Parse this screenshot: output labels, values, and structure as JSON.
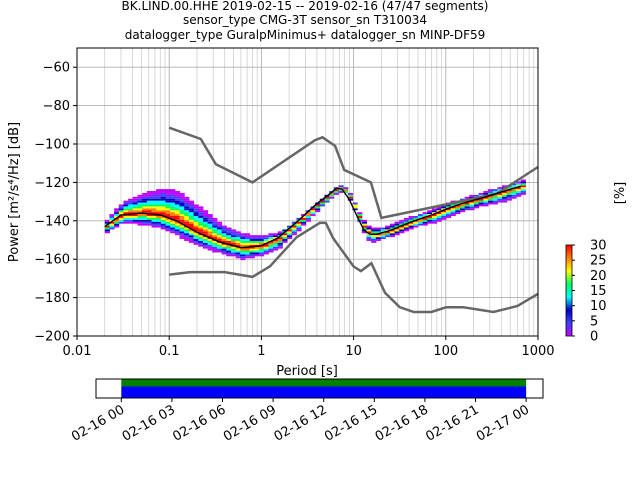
{
  "chart_data": {
    "type": "heatmap",
    "title_lines": [
      "BK.LIND.00.HHE   2019-02-15 -- 2019-02-16  (47/47 segments)",
      "sensor_type CMG-3T sensor_sn T310034",
      "datalogger_type GuralpMinimus+ datalogger_sn MINP-DF59"
    ],
    "xlabel": "Period [s]",
    "ylabel": "Power [m²/s⁴/Hz] [dB]",
    "xscale": "log",
    "xlim": [
      0.01,
      1000
    ],
    "ylim": [
      -200,
      -50
    ],
    "grid": true,
    "x_ticks": [
      {
        "value": 0.01,
        "label": "0.01"
      },
      {
        "value": 0.1,
        "label": "0.1"
      },
      {
        "value": 1,
        "label": "1"
      },
      {
        "value": 10,
        "label": "10"
      },
      {
        "value": 100,
        "label": "100"
      },
      {
        "value": 1000,
        "label": "1000"
      }
    ],
    "y_ticks": [
      {
        "value": -60,
        "label": "−60"
      },
      {
        "value": -80,
        "label": "−80"
      },
      {
        "value": -100,
        "label": "−100"
      },
      {
        "value": -120,
        "label": "−120"
      },
      {
        "value": -140,
        "label": "−140"
      },
      {
        "value": -160,
        "label": "−160"
      },
      {
        "value": -180,
        "label": "−180"
      },
      {
        "value": -200,
        "label": "−200"
      }
    ],
    "new_high_noise_model": {
      "x": [
        0.1,
        0.22,
        0.32,
        0.8,
        3.8,
        4.6,
        6.3,
        7.9,
        15.4,
        20,
        354.8,
        1000
      ],
      "y": [
        -91.5,
        -97.4,
        -110.5,
        -120,
        -98,
        -96.5,
        -101,
        -113.5,
        -120,
        -138.5,
        -126,
        -112
      ]
    },
    "new_low_noise_model": {
      "x": [
        0.1,
        0.17,
        0.4,
        0.8,
        1.24,
        2.4,
        4.3,
        5,
        6,
        10,
        12,
        15.6,
        21.9,
        31.6,
        45,
        70,
        101,
        154,
        328,
        600,
        1000
      ],
      "y": [
        -168,
        -166.7,
        -166.7,
        -169.2,
        -163.7,
        -148.6,
        -141.1,
        -141.1,
        -149,
        -163.8,
        -166.2,
        -162.1,
        -177.5,
        -185,
        -187.5,
        -187.5,
        -185,
        -185,
        -187.5,
        -184.4,
        -178
      ]
    },
    "mode_curve": {
      "x": [
        0.02,
        0.03,
        0.05,
        0.08,
        0.12,
        0.2,
        0.35,
        0.6,
        1.0,
        1.5,
        2.5,
        4,
        5.5,
        6.5,
        7.5,
        9,
        11,
        13,
        15,
        18,
        25,
        40,
        70,
        100,
        150,
        250,
        400,
        650
      ],
      "y": [
        -143,
        -137,
        -136,
        -137,
        -140,
        -146,
        -151,
        -154,
        -153,
        -149,
        -140,
        -131,
        -126,
        -123,
        -123.5,
        -129,
        -138,
        -145,
        -147,
        -147,
        -145,
        -141,
        -137,
        -134,
        -131,
        -128,
        -125,
        -122
      ]
    },
    "spread_upper": {
      "x": [
        0.02,
        0.03,
        0.05,
        0.08,
        0.12,
        0.2,
        0.35,
        0.6,
        1.0,
        1.5,
        2.5,
        4,
        5.5,
        6.5,
        7.5,
        9,
        11,
        13,
        15,
        18,
        25,
        40,
        70,
        100,
        150,
        250,
        400,
        650
      ],
      "y": [
        -140,
        -130,
        -126,
        -124,
        -125,
        -133,
        -142,
        -147,
        -148,
        -146,
        -138,
        -130,
        -125,
        -122,
        -122,
        -127,
        -136,
        -142,
        -144,
        -144,
        -142,
        -138,
        -134,
        -131,
        -128,
        -125,
        -122,
        -119
      ]
    },
    "spread_lower": {
      "x": [
        0.02,
        0.03,
        0.05,
        0.08,
        0.12,
        0.2,
        0.35,
        0.6,
        1.0,
        1.5,
        2.5,
        4,
        5.5,
        6.5,
        7.5,
        9,
        11,
        13,
        15,
        18,
        25,
        40,
        70,
        100,
        150,
        250,
        400,
        650
      ],
      "y": [
        -146,
        -141,
        -142,
        -144,
        -148,
        -153,
        -157,
        -160,
        -158,
        -154,
        -144,
        -134,
        -128,
        -125,
        -125,
        -131,
        -141,
        -149,
        -151,
        -150,
        -148,
        -144,
        -141,
        -138,
        -135,
        -132,
        -130,
        -126
      ]
    },
    "colorbar": {
      "label": "[%]",
      "range": [
        0,
        30
      ],
      "ticks": [
        {
          "value": 0,
          "label": "0"
        },
        {
          "value": 5,
          "label": "5"
        },
        {
          "value": 10,
          "label": "10"
        },
        {
          "value": 15,
          "label": "15"
        },
        {
          "value": 20,
          "label": "20"
        },
        {
          "value": 25,
          "label": "25"
        },
        {
          "value": 30,
          "label": "30"
        }
      ],
      "colors": [
        "#ffffff",
        "#c000ff",
        "#4040ff",
        "#0000c0",
        "#00ffff",
        "#00ff60",
        "#ffff00",
        "#ff8000",
        "#ff0000"
      ]
    },
    "time_coverage": {
      "tick_labels": [
        "02-16 00",
        "02-16 03",
        "02-16 06",
        "02-16 09",
        "02-16 12",
        "02-16 15",
        "02-16 18",
        "02-16 21",
        "02-17 00"
      ],
      "range_hours": [
        -1.5,
        25
      ],
      "data_hours": [
        0,
        24
      ],
      "bar_colors": {
        "upper": "#008000",
        "lower": "#0000ff"
      }
    }
  }
}
